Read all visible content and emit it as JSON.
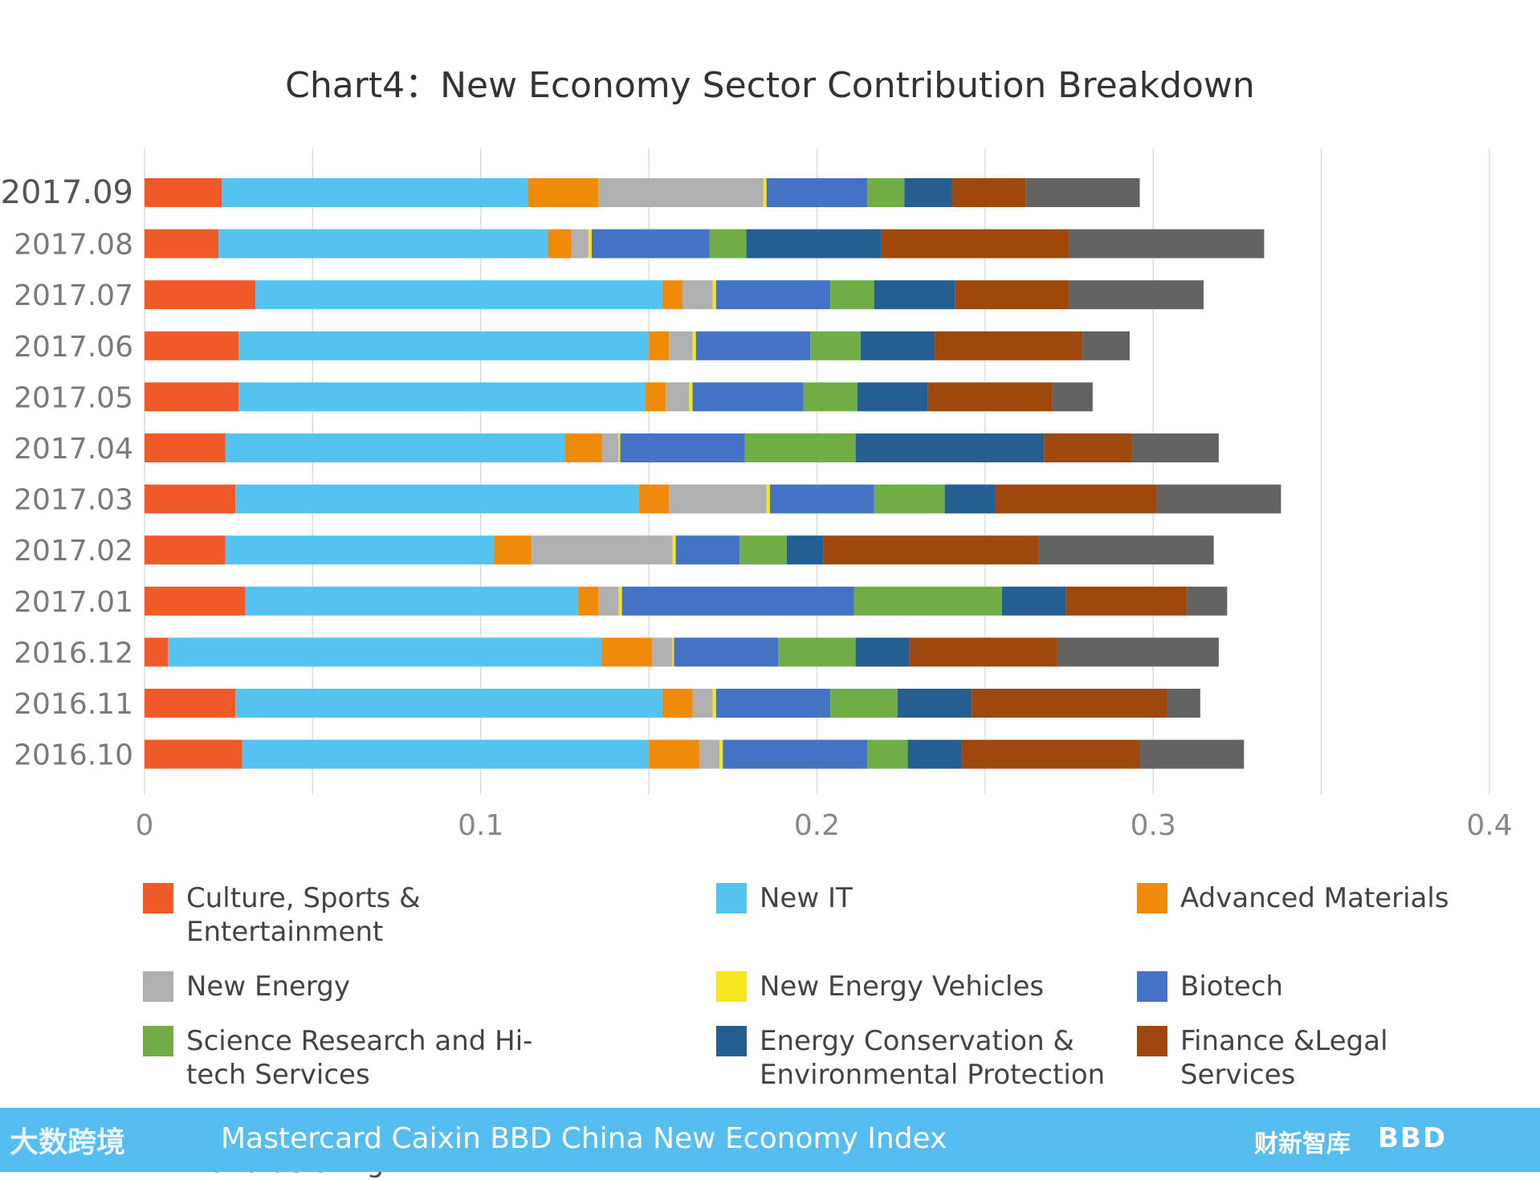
{
  "colors": {
    "Culture, Sports & Entertainment": "#f05a28",
    "New IT": "#55c3f0",
    "Advanced Materials": "#f08a0a",
    "New Energy": "#b0b0b0",
    "New Energy Vehicles": "#f5e61e",
    "Biotech": "#4472c4",
    "Science Research and Hi-tech Services": "#70ad47",
    "Energy Conservation & Environmental Protection": "#255e91",
    "Finance &Legal Services": "#9e480e",
    "Advanced Equipment Manufacturing": "#636363"
  },
  "legend_labels": [
    "Culture, Sports & Entertainment",
    "New IT",
    "Advanced Materials",
    "New Energy",
    "New Energy Vehicles",
    "Biotech",
    "Science Research and Hi-tech Services",
    "Energy Conservation & Environmental Protection",
    "Finance &Legal Services",
    "Advanced Equipment Manufacturing"
  ],
  "footer": {
    "title": "Mastercard Caixin BBD China New Economy Index",
    "logo_left": "大数跨境",
    "logo_right1": "财新智库",
    "logo_right2": "BBD"
  },
  "chart_data": {
    "type": "bar",
    "orientation": "horizontal",
    "stacked": true,
    "title": "Chart4：New Economy Sector Contribution Breakdown",
    "xlim": [
      0,
      0.4
    ],
    "xticks": [
      "0",
      "0.1",
      "0.2",
      "0.3",
      "0.4"
    ],
    "grid": true,
    "legend_position": "bottom",
    "categories": [
      "2017.09",
      "2017.08",
      "2017.07",
      "2017.06",
      "2017.05",
      "2017.04",
      "2017.03",
      "2017.02",
      "2017.01",
      "2016.12",
      "2016.11",
      "2016.10"
    ],
    "series": [
      {
        "name": "Culture, Sports & Entertainment",
        "values": [
          0.023,
          0.022,
          0.033,
          0.028,
          0.028,
          0.024,
          0.027,
          0.024,
          0.03,
          0.007,
          0.027,
          0.029
        ]
      },
      {
        "name": "New IT",
        "values": [
          0.091,
          0.098,
          0.121,
          0.122,
          0.121,
          0.101,
          0.12,
          0.08,
          0.099,
          0.129,
          0.127,
          0.121
        ]
      },
      {
        "name": "Advanced Materials",
        "values": [
          0.021,
          0.007,
          0.006,
          0.006,
          0.006,
          0.011,
          0.009,
          0.011,
          0.006,
          0.015,
          0.009,
          0.015
        ]
      },
      {
        "name": "New Energy",
        "values": [
          0.049,
          0.005,
          0.009,
          0.007,
          0.007,
          0.005,
          0.029,
          0.042,
          0.006,
          0.006,
          0.006,
          0.006
        ]
      },
      {
        "name": "New Energy Vehicles",
        "values": [
          0.001,
          0.001,
          0.001,
          0.001,
          0.001,
          0.0005,
          0.001,
          0.001,
          0.001,
          0.0005,
          0.001,
          0.001
        ]
      },
      {
        "name": "Biotech",
        "values": [
          0.03,
          0.035,
          0.034,
          0.034,
          0.033,
          0.037,
          0.031,
          0.019,
          0.069,
          0.031,
          0.034,
          0.043
        ]
      },
      {
        "name": "Science Research and Hi-tech Services",
        "values": [
          0.011,
          0.011,
          0.013,
          0.015,
          0.016,
          0.033,
          0.021,
          0.014,
          0.044,
          0.023,
          0.02,
          0.012
        ]
      },
      {
        "name": "Energy Conservation & Environmental Protection",
        "values": [
          0.014,
          0.04,
          0.024,
          0.022,
          0.021,
          0.056,
          0.015,
          0.011,
          0.019,
          0.016,
          0.022,
          0.016
        ]
      },
      {
        "name": "Finance &Legal Services",
        "values": [
          0.022,
          0.056,
          0.034,
          0.044,
          0.037,
          0.026,
          0.048,
          0.064,
          0.036,
          0.044,
          0.058,
          0.053
        ]
      },
      {
        "name": "Advanced Equipment Manufacturing",
        "values": [
          0.034,
          0.058,
          0.04,
          0.014,
          0.012,
          0.026,
          0.037,
          0.052,
          0.012,
          0.048,
          0.01,
          0.031
        ]
      }
    ]
  }
}
